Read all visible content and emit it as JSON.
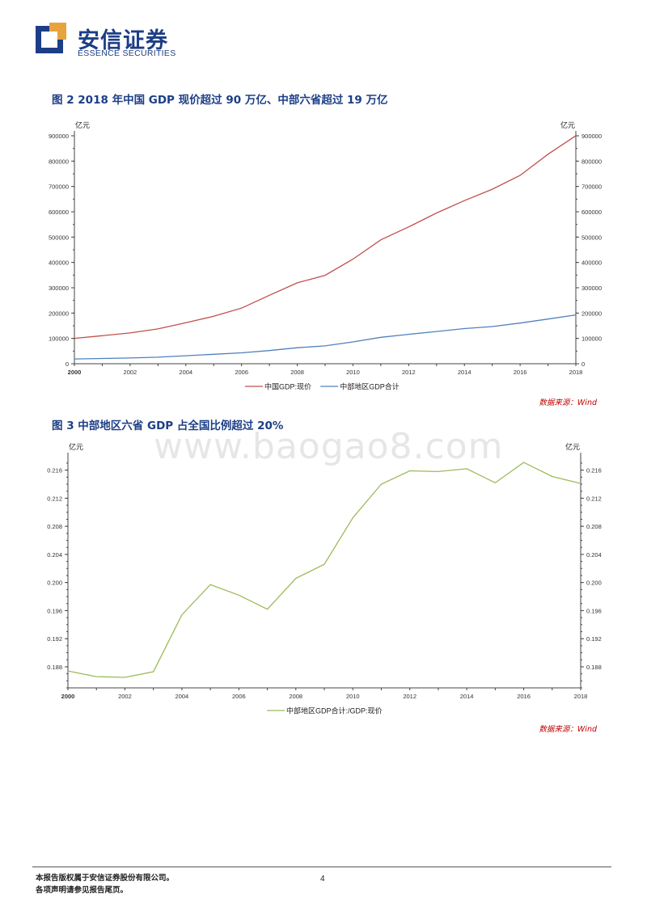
{
  "header": {
    "logo_cn": "安信证券",
    "logo_en": "ESSENCE SECURITIES",
    "colors": {
      "brand_blue": "#1d3e86",
      "brand_orange": "#e8a33c"
    }
  },
  "figure2": {
    "title": "图 2 2018 年中国 GDP 现价超过 90 万亿、中部六省超过 19 万亿",
    "source": "数据来源：Wind"
  },
  "figure3": {
    "title": "图 3 中部地区六省 GDP 占全国比例超过 20%",
    "source": "数据来源：Wind"
  },
  "watermark": "www.baogao8.com",
  "footer": {
    "line1": "本报告版权属于安信证券股份有限公司。",
    "line2": "各项声明请参见报告尾页。",
    "page_number": "4"
  },
  "chart_data": [
    {
      "type": "line",
      "unit_left": "亿元",
      "unit_right": "亿元",
      "ylim": [
        0,
        900000
      ],
      "yticks": [
        "0",
        "100000",
        "200000",
        "300000",
        "400000",
        "500000",
        "600000",
        "700000",
        "800000",
        "900000"
      ],
      "x": [
        2000,
        2001,
        2002,
        2003,
        2004,
        2005,
        2006,
        2007,
        2008,
        2009,
        2010,
        2011,
        2012,
        2013,
        2014,
        2015,
        2016,
        2017,
        2018
      ],
      "xticks": [
        "2000",
        "2002",
        "2004",
        "2006",
        "2008",
        "2010",
        "2012",
        "2014",
        "2016",
        "2018"
      ],
      "series": [
        {
          "name": "中国GDP:现价",
          "color": "#c0504d",
          "values": [
            100280,
            110863,
            121717,
            137422,
            161840,
            187319,
            219439,
            270232,
            319516,
            349081,
            413030,
            489301,
            540367,
            595244,
            643974,
            689052,
            743586,
            827122,
            900309
          ]
        },
        {
          "name": "中部地区GDP合计",
          "color": "#4f81bd",
          "values": [
            18800,
            20700,
            22600,
            26000,
            31700,
            37200,
            43200,
            52000,
            63200,
            70600,
            86100,
            104500,
            116300,
            127300,
            138700,
            146900,
            160600,
            176500,
            192700
          ]
        }
      ],
      "legend": "bottom"
    },
    {
      "type": "line",
      "unit_left": "亿元",
      "unit_right": "亿元",
      "ylim": [
        0.185,
        0.2178
      ],
      "yticks": [
        "0.188",
        "0.192",
        "0.196",
        "0.200",
        "0.204",
        "0.208",
        "0.212",
        "0.216"
      ],
      "x": [
        2000,
        2001,
        2002,
        2003,
        2004,
        2005,
        2006,
        2007,
        2008,
        2009,
        2010,
        2011,
        2012,
        2013,
        2014,
        2015,
        2016,
        2017,
        2018
      ],
      "xticks": [
        "2000",
        "2002",
        "2004",
        "2006",
        "2008",
        "2010",
        "2012",
        "2014",
        "2016",
        "2018"
      ],
      "series": [
        {
          "name": "中部地区GDP合计:/GDP:现价",
          "color": "#9bbb59",
          "values": [
            0.1874,
            0.1866,
            0.1865,
            0.1873,
            0.1954,
            0.1997,
            0.1982,
            0.1962,
            0.2006,
            0.2026,
            0.2092,
            0.214,
            0.2159,
            0.2158,
            0.2162,
            0.2142,
            0.2171,
            0.2151,
            0.2141
          ]
        }
      ],
      "legend": "bottom"
    }
  ]
}
